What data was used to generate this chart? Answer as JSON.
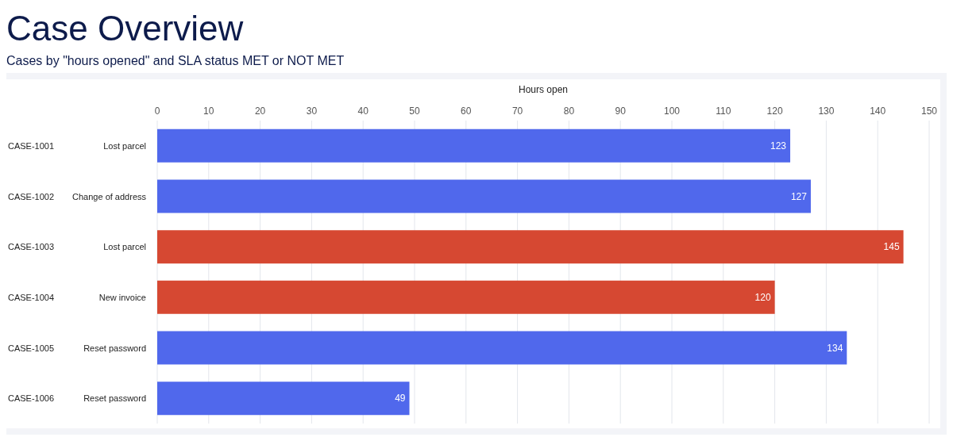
{
  "chart_data": {
    "type": "bar",
    "orientation": "horizontal",
    "title": "Case Overview",
    "subtitle": "Cases by \"hours opened\" and SLA status MET or NOT MET",
    "xlabel": "Hours open",
    "categories": [
      "CASE-1001",
      "CASE-1002",
      "CASE-1003",
      "CASE-1004",
      "CASE-1005",
      "CASE-1006"
    ],
    "values": [
      123,
      127,
      145,
      120,
      134,
      49
    ],
    "colors": [
      "#5068ec",
      "#5068ec",
      "#d64832",
      "#d64832",
      "#5068ec",
      "#5068ec"
    ],
    "annotations": [
      "Lost parcel",
      "Change of address",
      "Lost parcel",
      "New invoice",
      "Reset password",
      "Reset password"
    ],
    "xlim": [
      0,
      150
    ],
    "xticks": [
      0,
      10,
      20,
      30,
      40,
      50,
      60,
      70,
      80,
      90,
      100,
      110,
      120,
      130,
      140,
      150
    ],
    "grid": "x",
    "data_labels": true,
    "legend": false
  }
}
